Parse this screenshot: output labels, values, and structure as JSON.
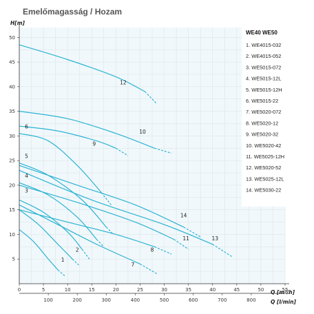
{
  "chart_data": {
    "type": "line",
    "title": "Emelőmagasság / Hozam",
    "ylabel": "H[m]",
    "xlabel": "Q [m³/h]",
    "x2label": "Q [l/min]",
    "xlim": [
      0,
      55
    ],
    "ylim": [
      0,
      52
    ],
    "x_ticks": [
      "0",
      "5",
      "10",
      "15",
      "20",
      "25",
      "30",
      "35",
      "40",
      "45",
      "50",
      "55"
    ],
    "x2_ticks": [
      "100",
      "200",
      "300",
      "400",
      "500",
      "600",
      "700",
      "800"
    ],
    "y_ticks": [
      "5",
      "10",
      "15",
      "20",
      "25",
      "30",
      "35",
      "40",
      "45",
      "50"
    ],
    "grid": true,
    "colors": {
      "curve": "#2ab3d3",
      "grid": "#d9e2e6",
      "plot_bg": "#f1f8fb",
      "axis": "#333333"
    },
    "legend": {
      "title": "WE40 WE50",
      "items": [
        "1. WE4015-032",
        "2. WE4015-052",
        "3. WE5015-072",
        "4. WE5015-12L",
        "5. WE5015-12H",
        "6. WE5015-22",
        "7. WE5020-072",
        "8. WE5020-12",
        "9. WE5020-32",
        "10. WE5020-42",
        "11. WE5025-12H",
        "12. WE5020-52",
        "13. WE5025-12L",
        "14. WE5030-22"
      ]
    },
    "series": [
      {
        "label": "1",
        "label_pos": [
          9,
          4.5
        ],
        "solid": [
          [
            0,
            11
          ],
          [
            3,
            8.5
          ],
          [
            6,
            5
          ],
          [
            8,
            2.8
          ]
        ],
        "dashed": [
          [
            8,
            2.8
          ],
          [
            9.5,
            1.5
          ]
        ]
      },
      {
        "label": "2",
        "label_pos": [
          12,
          6.5
        ],
        "solid": [
          [
            0,
            15
          ],
          [
            4,
            12
          ],
          [
            8,
            8
          ],
          [
            11,
            5
          ]
        ],
        "dashed": [
          [
            11,
            5
          ],
          [
            12.3,
            3.8
          ]
        ]
      },
      {
        "label": "3",
        "label_pos": [
          1.5,
          18.5
        ],
        "solid": [
          [
            0,
            17
          ],
          [
            5,
            14.5
          ],
          [
            10,
            10.5
          ],
          [
            13,
            7
          ]
        ],
        "dashed": [
          [
            13,
            7
          ],
          [
            14.5,
            5
          ]
        ]
      },
      {
        "label": "4",
        "label_pos": [
          1.5,
          21.5
        ],
        "solid": [
          [
            0,
            20.5
          ],
          [
            6,
            18
          ],
          [
            12,
            13.5
          ],
          [
            16,
            9
          ]
        ],
        "dashed": [
          [
            16,
            9
          ],
          [
            17.5,
            7.5
          ]
        ]
      },
      {
        "label": "5",
        "label_pos": [
          1.5,
          25.5
        ],
        "solid": [
          [
            0,
            24.5
          ],
          [
            6,
            22
          ],
          [
            13,
            17
          ],
          [
            18,
            11.5
          ]
        ],
        "dashed": [
          [
            18,
            11.5
          ],
          [
            19.5,
            10
          ]
        ]
      },
      {
        "label": "6",
        "label_pos": [
          1.5,
          31.5
        ],
        "solid": [
          [
            0,
            30.5
          ],
          [
            6,
            29
          ],
          [
            12,
            24
          ],
          [
            17,
            18.5
          ]
        ],
        "dashed": [
          [
            17,
            18.5
          ],
          [
            19,
            16
          ]
        ]
      },
      {
        "label": "7",
        "label_pos": [
          23.5,
          3.5
        ],
        "solid": [
          [
            0,
            16
          ],
          [
            8,
            12
          ],
          [
            16,
            8
          ],
          [
            25,
            4
          ]
        ],
        "dashed": [
          [
            25,
            4
          ],
          [
            28.5,
            2
          ]
        ]
      },
      {
        "label": "8",
        "label_pos": [
          27.5,
          6.5
        ],
        "solid": [
          [
            0,
            15
          ],
          [
            10,
            12.5
          ],
          [
            20,
            10
          ],
          [
            28,
            7.5
          ]
        ],
        "dashed": [
          [
            28,
            7.5
          ],
          [
            31.5,
            6
          ]
        ]
      },
      {
        "label": "9",
        "label_pos": [
          15.5,
          28
        ],
        "solid": [
          [
            0,
            32
          ],
          [
            8,
            31
          ],
          [
            16,
            29
          ],
          [
            20,
            27.5
          ]
        ],
        "dashed": [
          [
            20,
            27.5
          ],
          [
            22.5,
            26
          ]
        ]
      },
      {
        "label": "10",
        "label_pos": [
          25.5,
          30.5
        ],
        "solid": [
          [
            0,
            35
          ],
          [
            10,
            33.5
          ],
          [
            20,
            30.5
          ],
          [
            28,
            27.5
          ]
        ],
        "dashed": [
          [
            28,
            27.5
          ],
          [
            31.5,
            26.5
          ]
        ]
      },
      {
        "label": "11",
        "label_pos": [
          34.5,
          8.8
        ],
        "solid": [
          [
            0,
            20
          ],
          [
            12,
            16.5
          ],
          [
            24,
            12.5
          ],
          [
            32,
            9
          ]
        ],
        "dashed": [
          [
            32,
            9
          ],
          [
            35,
            7
          ]
        ]
      },
      {
        "label": "12",
        "label_pos": [
          21.5,
          40.5
        ],
        "solid": [
          [
            0,
            48.5
          ],
          [
            10,
            45.5
          ],
          [
            20,
            42
          ],
          [
            26,
            39
          ]
        ],
        "dashed": [
          [
            26,
            39
          ],
          [
            28.5,
            36.5
          ]
        ]
      },
      {
        "label": "13",
        "label_pos": [
          40.5,
          8.8
        ],
        "solid": [
          [
            0,
            23
          ],
          [
            15,
            17
          ],
          [
            30,
            12
          ],
          [
            40,
            8
          ]
        ],
        "dashed": [
          [
            40,
            8
          ],
          [
            44,
            5.5
          ]
        ]
      },
      {
        "label": "14",
        "label_pos": [
          34,
          13.5
        ],
        "solid": [
          [
            0,
            24
          ],
          [
            12,
            20
          ],
          [
            24,
            16
          ],
          [
            34,
            11.5
          ]
        ],
        "dashed": [
          [
            34,
            11.5
          ],
          [
            37.5,
            9.5
          ]
        ]
      }
    ]
  }
}
